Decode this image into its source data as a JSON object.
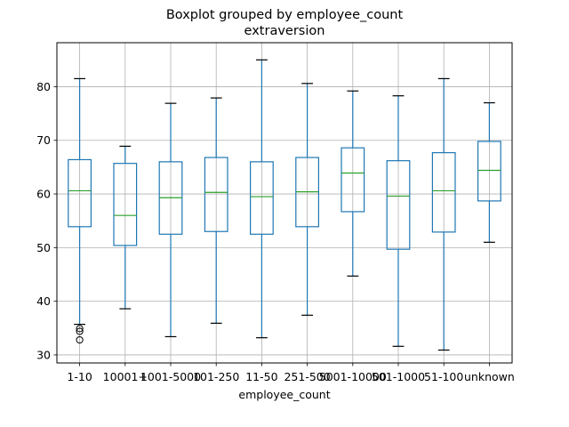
{
  "chart_data": {
    "type": "boxplot",
    "title": "Boxplot grouped by employee_count",
    "subtitle": "extraversion",
    "xlabel": "employee_count",
    "ylabel": "",
    "ylim": [
      28.5,
      88.2
    ],
    "yticks": [
      30,
      40,
      50,
      60,
      70,
      80
    ],
    "grid": true,
    "colors": {
      "box": "#1f77b4",
      "median": "#2ca02c",
      "whisker_cap": "#000000",
      "grid": "#b0b0b0"
    },
    "categories": [
      "1-10",
      "10001+",
      "1001-5000",
      "101-250",
      "11-50",
      "251-500",
      "5001-10000",
      "501-1000",
      "51-100",
      "unknown"
    ],
    "boxes": [
      {
        "category": "1-10",
        "whislo": 35.7,
        "q1": 53.9,
        "med": 60.6,
        "q3": 66.4,
        "whishi": 81.5,
        "fliers": [
          34.9,
          34.4,
          32.8
        ]
      },
      {
        "category": "10001+",
        "whislo": 38.6,
        "q1": 50.4,
        "med": 56.0,
        "q3": 65.7,
        "whishi": 68.9,
        "fliers": []
      },
      {
        "category": "1001-5000",
        "whislo": 33.4,
        "q1": 52.5,
        "med": 59.3,
        "q3": 66.0,
        "whishi": 76.9,
        "fliers": []
      },
      {
        "category": "101-250",
        "whislo": 35.9,
        "q1": 53.0,
        "med": 60.3,
        "q3": 66.8,
        "whishi": 77.9,
        "fliers": []
      },
      {
        "category": "11-50",
        "whislo": 33.2,
        "q1": 52.5,
        "med": 59.5,
        "q3": 66.0,
        "whishi": 85.0,
        "fliers": []
      },
      {
        "category": "251-500",
        "whislo": 37.4,
        "q1": 53.9,
        "med": 60.4,
        "q3": 66.8,
        "whishi": 80.6,
        "fliers": []
      },
      {
        "category": "5001-10000",
        "whislo": 44.7,
        "q1": 56.7,
        "med": 63.9,
        "q3": 68.6,
        "whishi": 79.2,
        "fliers": []
      },
      {
        "category": "501-1000",
        "whislo": 31.6,
        "q1": 49.7,
        "med": 59.6,
        "q3": 66.2,
        "whishi": 78.3,
        "fliers": []
      },
      {
        "category": "51-100",
        "whislo": 30.9,
        "q1": 52.9,
        "med": 60.6,
        "q3": 67.7,
        "whishi": 81.5,
        "fliers": []
      },
      {
        "category": "unknown",
        "whislo": 51.0,
        "q1": 58.7,
        "med": 64.4,
        "q3": 69.8,
        "whishi": 77.0,
        "fliers": []
      }
    ]
  }
}
